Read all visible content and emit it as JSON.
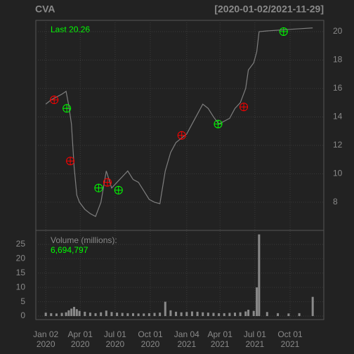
{
  "chart_data": {
    "type": "line",
    "title": "CVA",
    "subtitle": "[2020-01-02/2021-11-29]",
    "annotation": "Last 20.26",
    "x": [
      "2020-01-02",
      "2020-01-16",
      "2020-01-30",
      "2020-02-13",
      "2020-02-24",
      "2020-03-02",
      "2020-03-09",
      "2020-03-16",
      "2020-03-23",
      "2020-03-30",
      "2020-04-13",
      "2020-04-27",
      "2020-05-11",
      "2020-05-25",
      "2020-06-08",
      "2020-06-22",
      "2020-07-06",
      "2020-07-20",
      "2020-08-03",
      "2020-08-17",
      "2020-08-31",
      "2020-09-14",
      "2020-09-28",
      "2020-10-12",
      "2020-10-26",
      "2020-11-09",
      "2020-11-23",
      "2020-12-07",
      "2020-12-21",
      "2021-01-04",
      "2021-01-18",
      "2021-02-01",
      "2021-02-15",
      "2021-03-01",
      "2021-03-15",
      "2021-03-29",
      "2021-04-12",
      "2021-04-26",
      "2021-05-10",
      "2021-05-24",
      "2021-06-07",
      "2021-06-14",
      "2021-06-28",
      "2021-07-06",
      "2021-07-12",
      "2021-08-02",
      "2021-08-30",
      "2021-09-27",
      "2021-10-25",
      "2021-11-29"
    ],
    "series": [
      {
        "color": "#7f7f7f",
        "values": [
          14.9,
          15.2,
          15.4,
          15.6,
          15.8,
          14.8,
          13.5,
          10.5,
          8.5,
          8.0,
          7.5,
          7.2,
          7.0,
          8.0,
          10.2,
          9.0,
          9.4,
          9.8,
          10.2,
          9.6,
          9.4,
          8.8,
          8.2,
          8.0,
          7.9,
          10.2,
          11.5,
          12.2,
          12.5,
          12.8,
          13.5,
          14.2,
          14.9,
          14.6,
          14.0,
          13.5,
          13.7,
          13.9,
          14.6,
          15.0,
          16.0,
          17.3,
          17.8,
          18.6,
          20.0,
          20.05,
          20.1,
          20.15,
          20.2,
          20.26
        ]
      }
    ],
    "xlim": [
      "2019-12-07",
      "2021-12-28"
    ],
    "xticks": [
      {
        "value": "2020-01-02",
        "label": "Jan 02\n2020"
      },
      {
        "value": "2020-04-01",
        "label": "Apr 01\n2020"
      },
      {
        "value": "2020-07-01",
        "label": "Jul 01\n2020"
      },
      {
        "value": "2020-10-01",
        "label": "Oct 01\n2020"
      },
      {
        "value": "2021-01-04",
        "label": "Jan 04\n2021"
      },
      {
        "value": "2021-04-01",
        "label": "Apr 01\n2021"
      },
      {
        "value": "2021-07-01",
        "label": "Jul 01\n2021"
      },
      {
        "value": "2021-10-01",
        "label": "Oct 01\n2021"
      }
    ],
    "ylim": [
      6.02,
      20.79
    ],
    "yticks": [
      8,
      10,
      12,
      14,
      16,
      18,
      20
    ],
    "grid": true,
    "markers": [
      {
        "color": "#00ff00",
        "x": [
          "2020-02-26",
          "2020-05-19",
          "2020-07-10",
          "2021-03-27",
          "2021-09-14"
        ],
        "values": [
          14.6,
          9.0,
          8.85,
          13.5,
          20.0
        ]
      },
      {
        "color": "#ff0000",
        "x": [
          "2020-01-24",
          "2020-03-06",
          "2020-06-11",
          "2020-12-22",
          "2021-06-02"
        ],
        "values": [
          15.2,
          10.9,
          9.4,
          12.7,
          14.7
        ]
      }
    ],
    "volume": {
      "label": "Volume (millions):",
      "color": "#8a8a8a",
      "values": [
        1.2,
        1.0,
        0.9,
        1.1,
        1.3,
        2.0,
        2.6,
        3.2,
        2.4,
        1.8,
        1.5,
        1.2,
        1.0,
        1.3,
        1.9,
        1.4,
        1.2,
        1.1,
        1.0,
        1.0,
        0.9,
        0.9,
        1.0,
        1.1,
        1.2,
        5.0,
        2.0,
        1.5,
        1.3,
        1.4,
        1.6,
        1.5,
        1.3,
        1.2,
        1.1,
        1.0,
        1.0,
        1.1,
        1.2,
        1.3,
        1.6,
        2.2,
        1.8,
        10.0,
        28.5,
        1.4,
        1.0,
        0.9,
        1.0,
        6.694797
      ],
      "value_labels": [
        null,
        null,
        null,
        null,
        null,
        null,
        null,
        null,
        null,
        null,
        null,
        null,
        null,
        null,
        null,
        null,
        null,
        null,
        null,
        null,
        null,
        null,
        null,
        null,
        null,
        null,
        null,
        null,
        null,
        null,
        null,
        null,
        null,
        null,
        null,
        null,
        null,
        null,
        null,
        null,
        null,
        null,
        null,
        null,
        null,
        null,
        null,
        null,
        null,
        "6,694,797"
      ],
      "ylim": [
        -1.23,
        29.9
      ],
      "yticks": [
        0,
        5,
        10,
        15,
        20,
        25
      ]
    }
  }
}
